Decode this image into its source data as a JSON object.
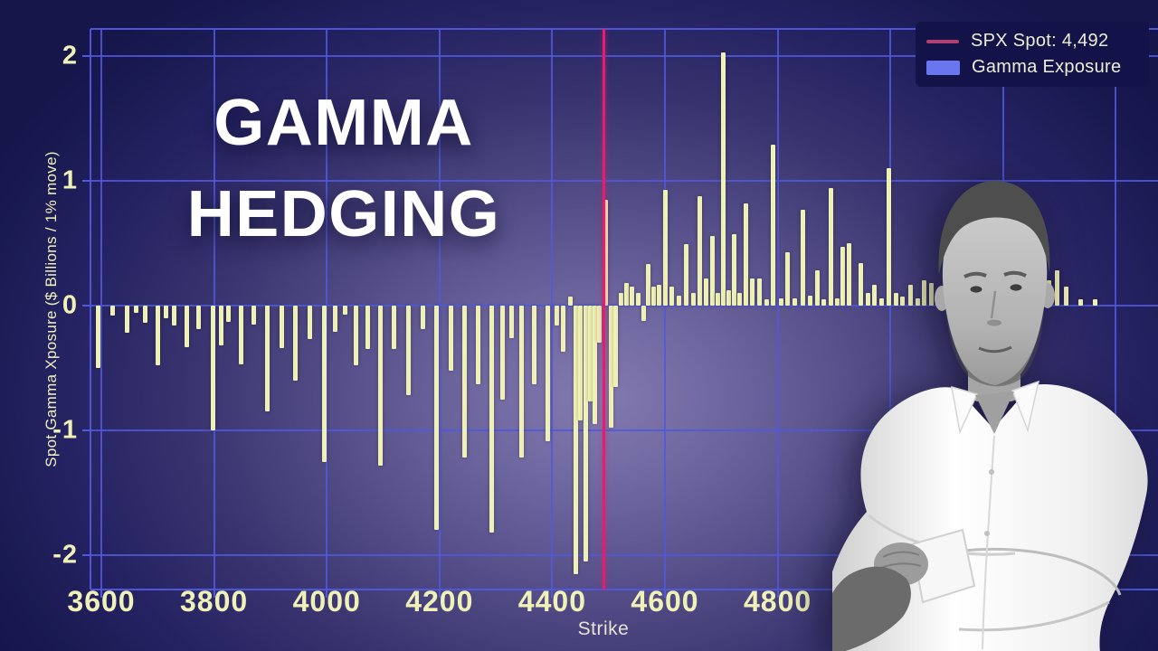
{
  "title": {
    "line1": "GAMMA",
    "line2": "HEDGING"
  },
  "legend": {
    "items": [
      {
        "label": "SPX Spot: 4,492",
        "swatch": "line",
        "color": "#b04070"
      },
      {
        "label": "Gamma Exposure",
        "swatch": "box",
        "color": "#6a75f0"
      }
    ]
  },
  "colors": {
    "background": "#16164b",
    "bar": "#eff0b4",
    "spot_line": "#e0206e",
    "grid": "#4f59dd",
    "tick_label": "#f0f1b6",
    "title_text": "#ffffff"
  },
  "person": {
    "description": "man in white shirt, arms crossed, grayscale photo"
  },
  "chart_data": {
    "type": "bar",
    "title": "",
    "xlabel": "Strike",
    "ylabel": "Spot Gamma Xposure ($ Billions / 1% move)",
    "x_ticks": [
      3600,
      3800,
      4000,
      4200,
      4400,
      4600,
      4800
    ],
    "y_ticks": [
      -2,
      -1,
      0,
      1,
      2
    ],
    "xlim": [
      3580,
      5475
    ],
    "ylim": [
      -2.28,
      2.22
    ],
    "grid": true,
    "legend_position": "upper right",
    "spot": {
      "label": "SPX Spot: 4,492",
      "value": 4492
    },
    "series_name": "Gamma Exposure",
    "bars": [
      [
        3595,
        -0.5
      ],
      [
        3620,
        -0.08
      ],
      [
        3645,
        -0.22
      ],
      [
        3662,
        -0.06
      ],
      [
        3678,
        -0.14
      ],
      [
        3700,
        -0.48
      ],
      [
        3715,
        -0.1
      ],
      [
        3730,
        -0.16
      ],
      [
        3752,
        -0.33
      ],
      [
        3772,
        -0.19
      ],
      [
        3798,
        -1.0
      ],
      [
        3812,
        -0.32
      ],
      [
        3826,
        -0.13
      ],
      [
        3848,
        -0.47
      ],
      [
        3870,
        -0.15
      ],
      [
        3895,
        -0.85
      ],
      [
        3920,
        -0.34
      ],
      [
        3945,
        -0.6
      ],
      [
        3970,
        -0.27
      ],
      [
        3995,
        -1.25
      ],
      [
        4015,
        -0.21
      ],
      [
        4032,
        -0.07
      ],
      [
        4052,
        -0.48
      ],
      [
        4072,
        -0.35
      ],
      [
        4095,
        -1.28
      ],
      [
        4120,
        -0.35
      ],
      [
        4145,
        -0.72
      ],
      [
        4170,
        -0.19
      ],
      [
        4195,
        -1.8
      ],
      [
        4220,
        -0.52
      ],
      [
        4245,
        -1.22
      ],
      [
        4268,
        -0.63
      ],
      [
        4292,
        -1.82
      ],
      [
        4312,
        -0.75
      ],
      [
        4328,
        -0.26
      ],
      [
        4345,
        -1.22
      ],
      [
        4368,
        -0.63
      ],
      [
        4392,
        -1.09
      ],
      [
        4408,
        -0.16
      ],
      [
        4420,
        -0.37
      ],
      [
        4432,
        0.07
      ],
      [
        4442,
        -2.15
      ],
      [
        4450,
        -0.92
      ],
      [
        4459,
        -2.05
      ],
      [
        4467,
        -0.77
      ],
      [
        4475,
        -0.95
      ],
      [
        4483,
        -0.3
      ],
      [
        4495,
        0.85
      ],
      [
        4504,
        -0.98
      ],
      [
        4513,
        -0.65
      ],
      [
        4522,
        0.1
      ],
      [
        4532,
        0.18
      ],
      [
        4542,
        0.15
      ],
      [
        4552,
        0.1
      ],
      [
        4562,
        -0.12
      ],
      [
        4570,
        0.33
      ],
      [
        4580,
        0.15
      ],
      [
        4590,
        0.17
      ],
      [
        4600,
        0.93
      ],
      [
        4612,
        0.15
      ],
      [
        4625,
        0.08
      ],
      [
        4638,
        0.49
      ],
      [
        4650,
        0.1
      ],
      [
        4662,
        0.88
      ],
      [
        4673,
        0.22
      ],
      [
        4684,
        0.56
      ],
      [
        4694,
        0.1
      ],
      [
        4703,
        2.03
      ],
      [
        4713,
        0.12
      ],
      [
        4723,
        0.57
      ],
      [
        4733,
        0.1
      ],
      [
        4744,
        0.82
      ],
      [
        4755,
        0.22
      ],
      [
        4768,
        0.22
      ],
      [
        4780,
        0.05
      ],
      [
        4792,
        1.29
      ],
      [
        4806,
        0.06
      ],
      [
        4818,
        0.43
      ],
      [
        4831,
        0.06
      ],
      [
        4844,
        0.77
      ],
      [
        4857,
        0.08
      ],
      [
        4870,
        0.28
      ],
      [
        4882,
        0.05
      ],
      [
        4894,
        0.94
      ],
      [
        4906,
        0.06
      ],
      [
        4916,
        0.47
      ],
      [
        4927,
        0.5
      ],
      [
        4948,
        0.34
      ],
      [
        4960,
        0.1
      ],
      [
        4972,
        0.17
      ],
      [
        4985,
        0.06
      ],
      [
        4997,
        1.1
      ],
      [
        5010,
        0.1
      ],
      [
        5022,
        0.07
      ],
      [
        5036,
        0.17
      ],
      [
        5048,
        0.06
      ],
      [
        5060,
        0.2
      ],
      [
        5072,
        0.18
      ],
      [
        5084,
        0.1
      ],
      [
        5282,
        0.2
      ],
      [
        5296,
        0.28
      ],
      [
        5312,
        0.15
      ],
      [
        5338,
        0.05
      ],
      [
        5364,
        0.05
      ]
    ]
  }
}
